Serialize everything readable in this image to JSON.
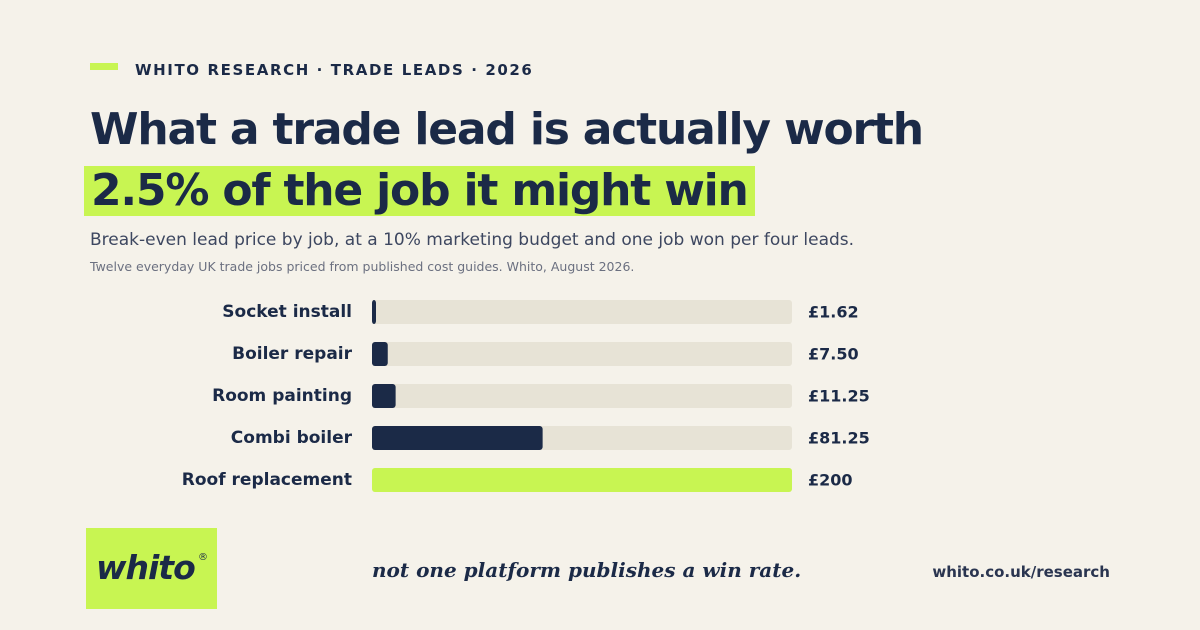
{
  "header": {
    "kicker": "WHITO RESEARCH · TRADE LEADS · 2026",
    "title_line1": "What a trade lead is actually worth",
    "title_line2": "2.5% of the job it might win",
    "subtitle": "Break-even lead price by job, at a 10% marketing budget and one job won per four leads.",
    "note": "Twelve everyday UK trade jobs priced from published cost guides. Whito, August 2026."
  },
  "colors": {
    "background": "#f5f2ea",
    "navy": "#1b2a47",
    "lime": "#c8f552",
    "track": "#e7e3d6"
  },
  "chart_data": {
    "type": "bar",
    "orientation": "horizontal",
    "categories": [
      "Socket install",
      "Boiler repair",
      "Room painting",
      "Combi boiler",
      "Roof replacement"
    ],
    "values": [
      1.62,
      7.5,
      11.25,
      81.25,
      200
    ],
    "value_labels": [
      "£1.62",
      "£7.50",
      "£11.25",
      "£81.25",
      "£200"
    ],
    "highlight": [
      "navy",
      "navy",
      "navy",
      "navy",
      "lime"
    ],
    "xlim": [
      0,
      200
    ],
    "grid": false,
    "title": "",
    "xlabel": "",
    "ylabel": ""
  },
  "footer": {
    "logo_text": "whito",
    "logo_reg": "®",
    "tagline": "not one platform publishes a win rate.",
    "url": "whito.co.uk/research"
  }
}
